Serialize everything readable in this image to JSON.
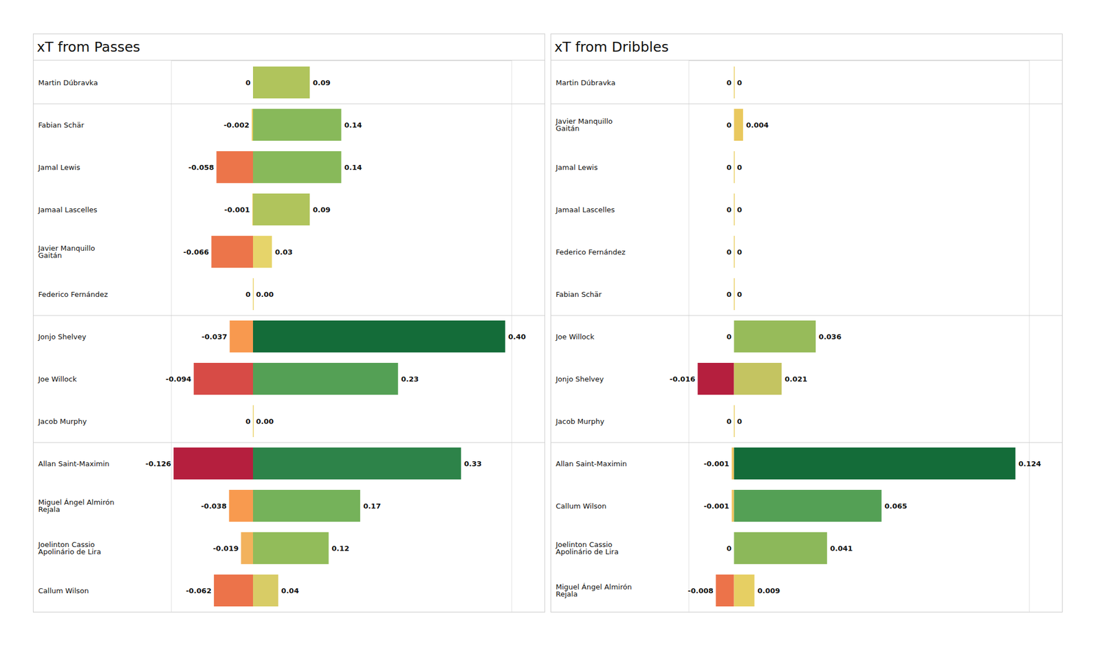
{
  "chart_data": [
    {
      "type": "bar",
      "title": "xT from Passes",
      "orientation": "horizontal",
      "stacked": true,
      "data_labels": true,
      "tick_labels": "y",
      "categories": [
        "Martin Dúbravka",
        "Fabian Schär",
        "Jamal Lewis",
        "Jamaal Lascelles",
        "Javier Manquillo Gaitán",
        "Federico Fernández",
        "Jonjo Shelvey",
        "Joe Willock",
        "Jacob Murphy",
        "Allan Saint-Maximin",
        "Miguel Ángel Almirón Rejala",
        "Joelinton Cassio Apolinário de Lira",
        "Callum Wilson"
      ],
      "xlim": [
        -0.13,
        0.41
      ],
      "series": [
        {
          "values": [
            0,
            -0.002,
            -0.058,
            -0.001,
            -0.066,
            0,
            -0.037,
            -0.094,
            0,
            -0.126,
            -0.038,
            -0.019,
            -0.062
          ],
          "value_labels": [
            "0",
            "-0.002",
            "-0.058",
            "-0.001",
            "-0.066",
            "0",
            "-0.037",
            "-0.094",
            "0",
            "-0.126",
            "-0.038",
            "-0.019",
            "-0.062"
          ],
          "colors": [
            "#e9cf63",
            "#eccc5e",
            "#ec754a",
            "#eccc5e",
            "#ec754a",
            "#e9cf63",
            "#f8994f",
            "#d74b46",
            "#e9cf63",
            "#b51f3e",
            "#f89a4f",
            "#f2b25c",
            "#ec734a"
          ]
        },
        {
          "values": [
            0.09,
            0.14,
            0.14,
            0.09,
            0.03,
            0,
            0.4,
            0.23,
            0,
            0.33,
            0.17,
            0.12,
            0.04
          ],
          "value_labels": [
            "0.09",
            "0.14",
            "0.14",
            "0.09",
            "0.03",
            "0.00",
            "0.40",
            "0.23",
            "0.00",
            "0.33",
            "0.17",
            "0.12",
            "0.04"
          ],
          "colors": [
            "#b0c45c",
            "#88b95a",
            "#88b95a",
            "#b0c45c",
            "#e6d46a",
            "#e9cf63",
            "#146c39",
            "#54a055",
            "#e9cf63",
            "#2d8349",
            "#75b25a",
            "#92bc5a",
            "#d8cc66"
          ]
        }
      ]
    },
    {
      "type": "bar",
      "title": "xT from Dribbles",
      "orientation": "horizontal",
      "stacked": true,
      "data_labels": true,
      "tick_labels": "y",
      "categories": [
        "Martin Dúbravka",
        "Javier Manquillo Gaitán",
        "Jamal Lewis",
        "Jamaal Lascelles",
        "Federico Fernández",
        "Fabian Schär",
        "Joe Willock",
        "Jonjo Shelvey",
        "Jacob Murphy",
        "Allan Saint-Maximin",
        "Callum Wilson",
        "Joelinton Cassio Apolinário de Lira",
        "Miguel Ángel Almirón Rejala"
      ],
      "xlim": [
        -0.02,
        0.13
      ],
      "series": [
        {
          "values": [
            0,
            0,
            0,
            0,
            0,
            0,
            0,
            -0.016,
            0,
            -0.001,
            -0.001,
            0,
            -0.008
          ],
          "value_labels": [
            "0",
            "0",
            "0",
            "0",
            "0",
            "0",
            "0",
            "-0.016",
            "0",
            "-0.001",
            "-0.001",
            "0",
            "-0.008"
          ],
          "colors": [
            "#e9cf63",
            "#e9cf63",
            "#e9cf63",
            "#e9cf63",
            "#e9cf63",
            "#e9cf63",
            "#e9cf63",
            "#b51f3e",
            "#e9cf63",
            "#f2c35e",
            "#f2c35e",
            "#e9cf63",
            "#ec734a"
          ]
        },
        {
          "values": [
            0,
            0.004,
            0,
            0,
            0,
            0,
            0.036,
            0.021,
            0,
            0.124,
            0.065,
            0.041,
            0.009
          ],
          "value_labels": [
            "0",
            "0.004",
            "0",
            "0",
            "0",
            "0",
            "0.036",
            "0.021",
            "0",
            "0.124",
            "0.065",
            "0.041",
            "0.009"
          ],
          "colors": [
            "#e9cf63",
            "#e9c85e",
            "#e9cf63",
            "#e9cf63",
            "#e9cf63",
            "#e9cf63",
            "#97bb5a",
            "#c4c461",
            "#e9cf63",
            "#146c39",
            "#54a055",
            "#8cb85a",
            "#e6cf63"
          ]
        }
      ]
    }
  ]
}
